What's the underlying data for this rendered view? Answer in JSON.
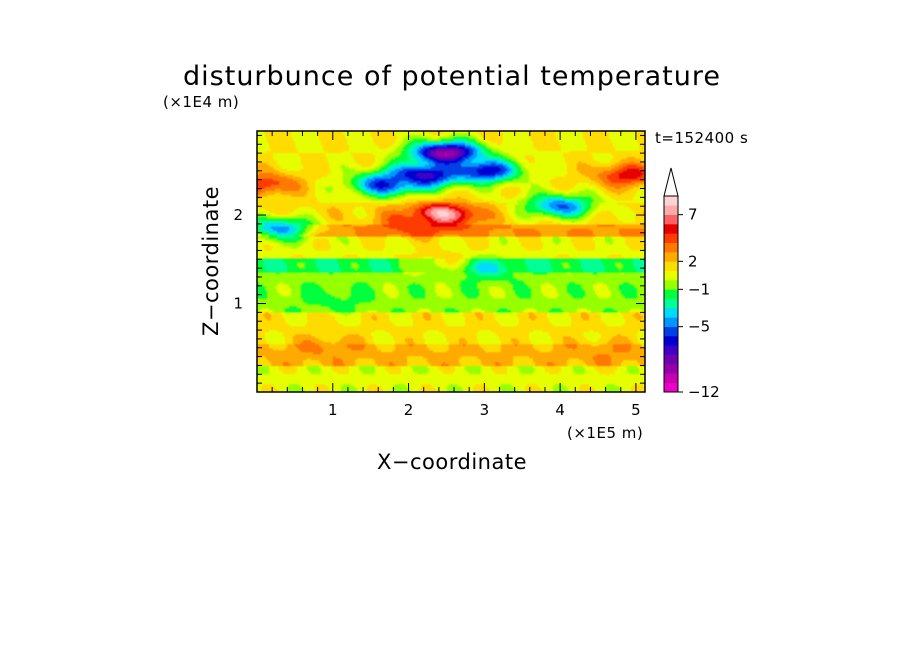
{
  "chart_data": {
    "type": "heatmap",
    "title": "disturbunce of potential temperature",
    "xlabel": "X−coordinate",
    "ylabel": "Z−coordinate",
    "x_unit": "(×1E5 m)",
    "y_unit": "(×1E4 m)",
    "annotation": "t=152400 s",
    "xlim": [
      0,
      5.12
    ],
    "ylim": [
      0,
      2.95
    ],
    "x_ticks": [
      "1",
      "2",
      "3",
      "4",
      "5"
    ],
    "x_tick_values": [
      1,
      2,
      3,
      4,
      5
    ],
    "y_ticks": [
      "1",
      "2"
    ],
    "y_tick_values": [
      1,
      2
    ],
    "colorbar": {
      "levels": [
        -12,
        -11,
        -10,
        -9,
        -8,
        -7,
        -6,
        -5,
        -4,
        -3,
        -2,
        -1,
        0,
        1,
        2,
        3,
        4,
        5,
        6,
        7,
        8,
        9,
        10
      ],
      "colors": [
        "#ee00c8",
        "#c800b4",
        "#9600aa",
        "#7000b0",
        "#4000c8",
        "#0000d2",
        "#0040e6",
        "#0096ff",
        "#00dcff",
        "#00ff96",
        "#00ff3c",
        "#96ff00",
        "#e6ff00",
        "#ffdc00",
        "#ffaa00",
        "#ff7800",
        "#ff3c00",
        "#e60000",
        "#ff6464",
        "#ffaaaa",
        "#ffd2d2"
      ],
      "labels": [
        "−12",
        "−5",
        "−1",
        "2",
        "7"
      ],
      "label_values": [
        -12,
        -5,
        -1,
        2,
        7
      ],
      "extend": "max"
    },
    "fields": {
      "layers": [
        {
          "z": [
            0.0,
            0.3
          ],
          "value": 0.5
        },
        {
          "z": [
            0.3,
            0.55
          ],
          "value": 2.2
        },
        {
          "z": [
            0.55,
            0.9
          ],
          "value": 1.2
        },
        {
          "z": [
            0.9,
            1.35
          ],
          "value": -0.5
        },
        {
          "z": [
            1.35,
            1.5
          ],
          "value": -1.8
        },
        {
          "z": [
            1.5,
            1.75
          ],
          "value": 0.8
        },
        {
          "z": [
            1.75,
            1.9
          ],
          "value": 3.0
        },
        {
          "z": [
            1.9,
            2.15
          ],
          "value": 1.5
        },
        {
          "z": [
            2.15,
            2.95
          ],
          "value": 1.0
        }
      ],
      "features": [
        {
          "x": 2.5,
          "z": 2.7,
          "value": -10.0
        },
        {
          "x": 2.2,
          "z": 2.45,
          "value": -8.0
        },
        {
          "x": 1.7,
          "z": 2.35,
          "value": -6.0
        },
        {
          "x": 3.0,
          "z": 2.5,
          "value": -7.0
        },
        {
          "x": 4.0,
          "z": 2.1,
          "value": -5.0
        },
        {
          "x": 0.3,
          "z": 1.85,
          "value": -4.5
        },
        {
          "x": 2.45,
          "z": 2.0,
          "value": 8.5
        },
        {
          "x": 2.1,
          "z": 1.9,
          "value": 5.0
        },
        {
          "x": 0.1,
          "z": 2.35,
          "value": 5.0
        },
        {
          "x": 4.9,
          "z": 2.45,
          "value": 5.5
        },
        {
          "x": 2.6,
          "z": 1.45,
          "value": 2.5
        },
        {
          "x": 3.0,
          "z": 1.4,
          "value": -3.0
        },
        {
          "x": 1.0,
          "z": 1.05,
          "value": -1.5
        },
        {
          "x": 0.9,
          "z": 0.5,
          "value": 3.2
        },
        {
          "x": 4.6,
          "z": 0.45,
          "value": 3.0
        }
      ]
    }
  }
}
